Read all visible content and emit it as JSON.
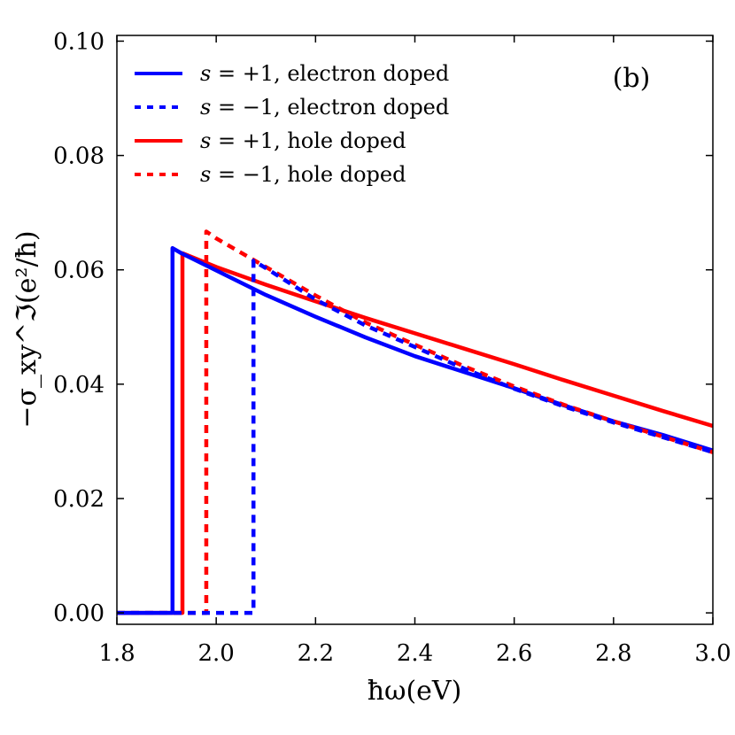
{
  "chart_data": {
    "type": "line",
    "panel_label": "(b)",
    "xlabel": "ħω(eV)",
    "ylabel": "−σ_xy^ℑ(e²/ħ)",
    "xlim": [
      1.8,
      3.0
    ],
    "ylim": [
      -0.002,
      0.101
    ],
    "xticks": [
      1.8,
      2.0,
      2.2,
      2.4,
      2.6,
      2.8,
      3.0
    ],
    "xtick_labels": [
      "1.8",
      "2.0",
      "2.2",
      "2.4",
      "2.6",
      "2.8",
      "3.0"
    ],
    "yticks": [
      0.0,
      0.02,
      0.04,
      0.06,
      0.08,
      0.1
    ],
    "ytick_labels": [
      "0.00",
      "0.02",
      "0.04",
      "0.06",
      "0.08",
      "0.10"
    ],
    "grid": false,
    "legend_position": "top-left",
    "series": [
      {
        "name": "s = +1, electron doped",
        "legend_s": "s",
        "legend_eq": " = +1, electron doped",
        "color": "#0000ff",
        "linestyle": "solid",
        "x": [
          1.8,
          1.912,
          1.912,
          1.93,
          2.0,
          2.1,
          2.2,
          2.3,
          2.4,
          2.5,
          2.6,
          2.7,
          2.8,
          2.9,
          3.0
        ],
        "y": [
          0.0,
          0.0,
          0.0638,
          0.0629,
          0.0599,
          0.0556,
          0.0518,
          0.0482,
          0.0449,
          0.0421,
          0.0393,
          0.0363,
          0.0335,
          0.0311,
          0.0284
        ]
      },
      {
        "name": "s = −1, electron doped",
        "legend_s": "s",
        "legend_eq": " = −1, electron doped",
        "color": "#0000ff",
        "linestyle": "dashed",
        "x": [
          1.8,
          2.075,
          2.075,
          2.1,
          2.2,
          2.3,
          2.4,
          2.5,
          2.6,
          2.7,
          2.8,
          2.9,
          3.0
        ],
        "y": [
          0.0,
          0.0,
          0.0616,
          0.0603,
          0.0548,
          0.0503,
          0.0465,
          0.0427,
          0.0392,
          0.0361,
          0.0333,
          0.0307,
          0.0281
        ]
      },
      {
        "name": "s = +1, hole doped",
        "legend_s": "s",
        "legend_eq": " = +1, hole doped",
        "color": "#ff0000",
        "linestyle": "solid",
        "x": [
          1.8,
          1.932,
          1.932,
          2.0,
          2.1,
          2.2,
          2.3,
          2.4,
          2.5,
          2.6,
          2.7,
          2.8,
          2.9,
          3.0
        ],
        "y": [
          0.0,
          0.0,
          0.0629,
          0.0605,
          0.0574,
          0.0545,
          0.0516,
          0.0489,
          0.0462,
          0.0435,
          0.0407,
          0.038,
          0.0353,
          0.0327
        ]
      },
      {
        "name": "s = −1, hole doped",
        "legend_s": "s",
        "legend_eq": " = −1, hole doped",
        "color": "#ff0000",
        "linestyle": "dashed",
        "x": [
          1.8,
          1.98,
          1.98,
          2.0,
          2.1,
          2.2,
          2.3,
          2.4,
          2.5,
          2.6,
          2.7,
          2.8,
          2.9,
          3.0
        ],
        "y": [
          0.0,
          0.0,
          0.0667,
          0.0655,
          0.0605,
          0.0555,
          0.0508,
          0.0469,
          0.0431,
          0.0396,
          0.0364,
          0.0335,
          0.0308,
          0.0281
        ]
      }
    ]
  }
}
